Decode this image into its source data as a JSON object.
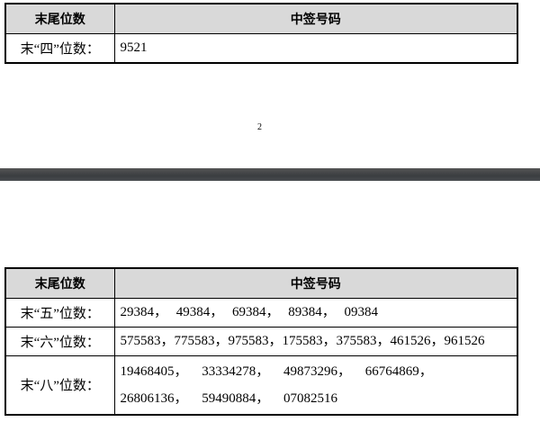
{
  "table1": {
    "headers": [
      "末尾位数",
      "中签号码"
    ],
    "rows": [
      {
        "label": "末“四”位数：",
        "numbers": "9521"
      }
    ]
  },
  "page_number": "2",
  "table2": {
    "headers": [
      "末尾位数",
      "中签号码"
    ],
    "rows": [
      {
        "label": "末“五”位数：",
        "numbers": "29384， 49384， 69384， 89384， 09384"
      },
      {
        "label": "末“六”位数：",
        "numbers": "575583，775583，975583，175583，375583，461526，961526"
      },
      {
        "label": "末“八”位数：",
        "numbers": "19468405， 33334278， 49873296， 66764869， 26806136， 59490884， 07082516"
      }
    ]
  }
}
